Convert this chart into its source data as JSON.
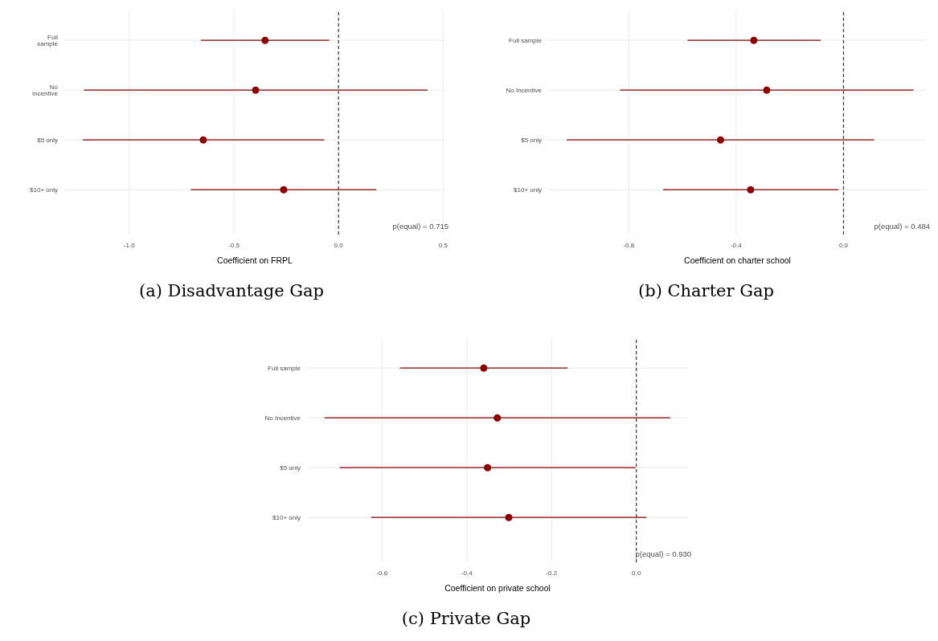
{
  "chart_data": [
    {
      "type": "scatter",
      "orientation": "horizontal",
      "title": "(a) Disadvantage Gap",
      "xlabel": "Coefficient on FRPL",
      "categories": [
        "Full sample",
        "No Incentive",
        "$5 only",
        "$10+ only"
      ],
      "series": [
        {
          "color": "#8b0000",
          "values": [
            -0.351,
            -0.396,
            -0.646,
            -0.262
          ],
          "errors": [
            [
              -0.657,
              -0.044
            ],
            [
              -1.216,
              0.425
            ],
            [
              -1.222,
              -0.068
            ],
            [
              -0.706,
              0.181
            ]
          ]
        }
      ],
      "xlim": [
        -1.31,
        0.51
      ],
      "xticks": [
        {
          "value": -1,
          "label": "-1.0"
        },
        {
          "value": -0.5,
          "label": "-0.5"
        },
        {
          "value": 0,
          "label": "0.0"
        },
        0.5
      ],
      "grid": true,
      "marker": "circle",
      "ref_lines": [
        {
          "axis": "x",
          "value": 0,
          "line_style": "dashed",
          "color": "#333333"
        }
      ],
      "annotations": [
        "p(equal) = 0.715"
      ]
    },
    {
      "type": "scatter",
      "orientation": "horizontal",
      "title": "(b) Charter Gap",
      "xlabel": "Coefficient on charter school",
      "categories": [
        "Full sample",
        "No Incentive",
        "$5 only",
        "$10+ only"
      ],
      "series": [
        {
          "color": "#8b0000",
          "values": [
            -0.334,
            -0.286,
            -0.458,
            -0.346
          ],
          "errors": [
            [
              -0.581,
              -0.085
            ],
            [
              -0.832,
              0.261
            ],
            [
              -1.031,
              0.114
            ],
            [
              -0.672,
              -0.019
            ]
          ]
        }
      ],
      "xlim": [
        -1.1,
        0.31
      ],
      "xticks": [
        -0.8,
        -0.4,
        {
          "value": 0,
          "label": "0.0"
        }
      ],
      "grid": true,
      "marker": "circle",
      "ref_lines": [
        {
          "axis": "x",
          "value": 0,
          "line_style": "dashed",
          "color": "#333333"
        }
      ],
      "annotations": [
        "p(equal) = 0.484"
      ]
    },
    {
      "type": "scatter",
      "orientation": "horizontal",
      "title": "(c) Private Gap",
      "xlabel": "Coefficient on private school",
      "categories": [
        "Full sample",
        "No Incentive",
        "$5 only",
        "$10+ only"
      ],
      "series": [
        {
          "color": "#8b0000",
          "values": [
            -0.36,
            -0.328,
            -0.351,
            -0.301
          ],
          "errors": [
            [
              -0.558,
              -0.162
            ],
            [
              -0.736,
              0.08
            ],
            [
              -0.7,
              -0.002
            ],
            [
              -0.626,
              0.024
            ]
          ]
        }
      ],
      "xlim": [
        -0.777,
        0.122
      ],
      "xticks": [
        -0.6,
        -0.4,
        -0.2,
        {
          "value": 0,
          "label": "0.0"
        }
      ],
      "grid": true,
      "marker": "circle",
      "ref_lines": [
        {
          "axis": "x",
          "value": 0,
          "line_style": "dashed",
          "color": "#333333"
        }
      ],
      "annotations": [
        "p(equal) = 0.930"
      ]
    }
  ]
}
